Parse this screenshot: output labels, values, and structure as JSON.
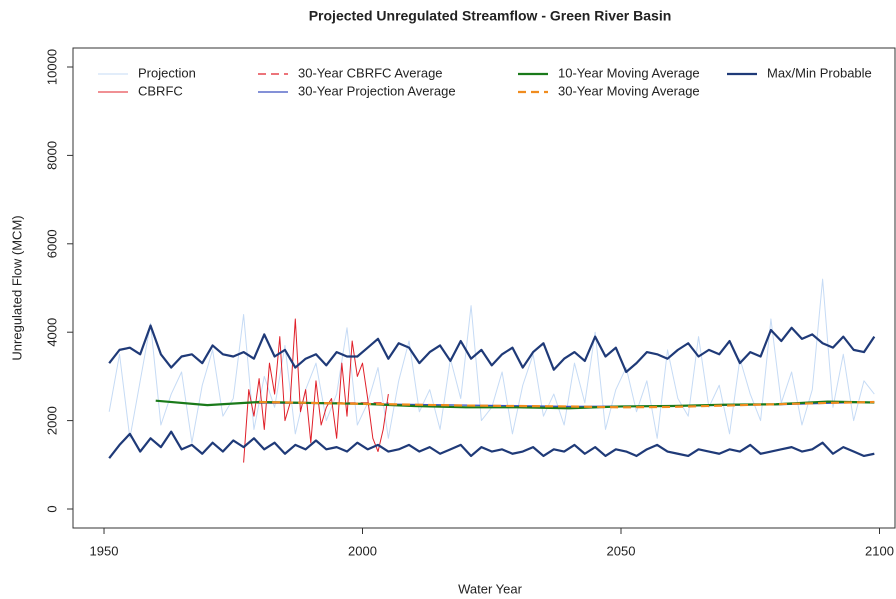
{
  "chart_data": {
    "type": "line",
    "title": "Projected Unregulated Streamflow - Green River Basin",
    "x_label": "Water Year",
    "y_label": "Unregulated Flow (MCM)",
    "xlim": [
      1944,
      2103
    ],
    "ylim": [
      -430,
      10430
    ],
    "xticks": [
      1950,
      2000,
      2050,
      2100
    ],
    "yticks": [
      0,
      2000,
      4000,
      6000,
      8000,
      10000
    ],
    "legend": "top",
    "series": [
      {
        "name": "Projection",
        "color": "#c6dbf5",
        "width": 1,
        "x": [
          1951,
          1953,
          1955,
          1957,
          1959,
          1961,
          1963,
          1965,
          1967,
          1969,
          1971,
          1973,
          1975,
          1977,
          1979,
          1981,
          1983,
          1985,
          1987,
          1989,
          1991,
          1993,
          1995,
          1997,
          1999,
          2001,
          2003,
          2005,
          2007,
          2009,
          2011,
          2013,
          2015,
          2017,
          2019,
          2021,
          2023,
          2025,
          2027,
          2029,
          2031,
          2033,
          2035,
          2037,
          2039,
          2041,
          2043,
          2045,
          2047,
          2049,
          2051,
          2053,
          2055,
          2057,
          2059,
          2061,
          2063,
          2065,
          2067,
          2069,
          2071,
          2073,
          2075,
          2077,
          2079,
          2081,
          2083,
          2085,
          2087,
          2089,
          2091,
          2093,
          2095,
          2097,
          2099
        ],
        "values": [
          2200,
          3500,
          1600,
          2900,
          4200,
          1900,
          2600,
          3100,
          1500,
          2800,
          3600,
          2100,
          2500,
          4400,
          1800,
          3000,
          2300,
          3700,
          1700,
          2700,
          3300,
          2000,
          2600,
          4100,
          1900,
          2400,
          3200,
          1600,
          2900,
          3800,
          2200,
          2700,
          1800,
          3400,
          2500,
          4600,
          2000,
          2300,
          3100,
          1700,
          2800,
          3500,
          2100,
          2600,
          1900,
          3300,
          2400,
          4000,
          1800,
          2700,
          3200,
          2200,
          2900,
          1600,
          3600,
          2500,
          2100,
          3900,
          2300,
          2800,
          1700,
          3400,
          2600,
          2000,
          4300,
          2400,
          3100,
          1900,
          2700,
          5200,
          2300,
          3500,
          2000,
          2900,
          2600
        ]
      },
      {
        "name": "CBRFC",
        "color": "#e0202a",
        "width": 1,
        "x": [
          1977,
          1978,
          1979,
          1980,
          1981,
          1982,
          1983,
          1984,
          1985,
          1986,
          1987,
          1988,
          1989,
          1990,
          1991,
          1992,
          1993,
          1994,
          1995,
          1996,
          1997,
          1998,
          1999,
          2000,
          2001,
          2002,
          2003,
          2004,
          2005
        ],
        "values": [
          1050,
          2700,
          2100,
          2950,
          1800,
          3300,
          2600,
          3900,
          2000,
          2400,
          4300,
          2200,
          2700,
          1500,
          2900,
          1900,
          2300,
          2500,
          1600,
          3300,
          2100,
          3800,
          3000,
          3300,
          2500,
          1600,
          1300,
          1800,
          2600
        ]
      },
      {
        "name": "30-Year CBRFC Average",
        "color": "#e0202a",
        "width": 1.3,
        "dash": true,
        "x": [
          1977,
          2005
        ],
        "values": [
          2400,
          2400
        ]
      },
      {
        "name": "30-Year Projection Average",
        "color": "#3a4fbf",
        "width": 1.3,
        "x": [
          1980,
          2000,
          2020,
          2040,
          2060,
          2080,
          2099
        ],
        "values": [
          2400,
          2380,
          2350,
          2320,
          2330,
          2360,
          2420
        ]
      },
      {
        "name": "10-Year Moving Average",
        "color": "#1a7a1a",
        "width": 2.2,
        "x": [
          1960,
          1970,
          1980,
          1990,
          2000,
          2010,
          2020,
          2030,
          2040,
          2050,
          2060,
          2070,
          2080,
          2090,
          2099
        ],
        "values": [
          2450,
          2350,
          2420,
          2400,
          2380,
          2330,
          2300,
          2300,
          2280,
          2320,
          2330,
          2360,
          2370,
          2430,
          2410
        ]
      },
      {
        "name": "30-Year Moving Average",
        "color": "#f08c1e",
        "width": 2.2,
        "dash": true,
        "x": [
          1980,
          1990,
          2000,
          2010,
          2020,
          2030,
          2040,
          2050,
          2060,
          2070,
          2080,
          2090,
          2099
        ],
        "values": [
          2420,
          2400,
          2380,
          2360,
          2340,
          2330,
          2320,
          2300,
          2310,
          2340,
          2370,
          2400,
          2420
        ]
      },
      {
        "name": "Max/Min Probable",
        "color": "#1f3a78",
        "width": 2.2,
        "x": [
          1951,
          1953,
          1955,
          1957,
          1959,
          1961,
          1963,
          1965,
          1967,
          1969,
          1971,
          1973,
          1975,
          1977,
          1979,
          1981,
          1983,
          1985,
          1987,
          1989,
          1991,
          1993,
          1995,
          1997,
          1999,
          2001,
          2003,
          2005,
          2007,
          2009,
          2011,
          2013,
          2015,
          2017,
          2019,
          2021,
          2023,
          2025,
          2027,
          2029,
          2031,
          2033,
          2035,
          2037,
          2039,
          2041,
          2043,
          2045,
          2047,
          2049,
          2051,
          2053,
          2055,
          2057,
          2059,
          2061,
          2063,
          2065,
          2067,
          2069,
          2071,
          2073,
          2075,
          2077,
          2079,
          2081,
          2083,
          2085,
          2087,
          2089,
          2091,
          2093,
          2095,
          2097,
          2099
        ],
        "values": [
          3300,
          3600,
          3650,
          3500,
          4150,
          3500,
          3200,
          3450,
          3500,
          3300,
          3700,
          3500,
          3450,
          3550,
          3400,
          3950,
          3450,
          3600,
          3200,
          3400,
          3500,
          3250,
          3550,
          3450,
          3450,
          3650,
          3850,
          3400,
          3750,
          3650,
          3300,
          3550,
          3700,
          3350,
          3800,
          3400,
          3600,
          3250,
          3500,
          3650,
          3200,
          3550,
          3750,
          3150,
          3400,
          3550,
          3350,
          3900,
          3450,
          3650,
          3100,
          3300,
          3550,
          3500,
          3400,
          3600,
          3750,
          3450,
          3600,
          3500,
          3800,
          3300,
          3550,
          3450,
          4050,
          3800,
          4100,
          3850,
          3950,
          3750,
          3650,
          3900,
          3600,
          3550,
          3900
        ],
        "min_values": [
          1150,
          1450,
          1700,
          1300,
          1600,
          1400,
          1750,
          1350,
          1450,
          1250,
          1500,
          1300,
          1550,
          1400,
          1600,
          1350,
          1500,
          1250,
          1450,
          1350,
          1550,
          1350,
          1400,
          1300,
          1500,
          1350,
          1450,
          1300,
          1350,
          1450,
          1300,
          1400,
          1250,
          1350,
          1450,
          1200,
          1400,
          1300,
          1350,
          1250,
          1300,
          1400,
          1200,
          1350,
          1300,
          1450,
          1250,
          1400,
          1200,
          1350,
          1300,
          1200,
          1350,
          1450,
          1300,
          1250,
          1200,
          1350,
          1300,
          1250,
          1350,
          1300,
          1450,
          1250,
          1300,
          1350,
          1400,
          1300,
          1350,
          1500,
          1250,
          1400,
          1300,
          1200,
          1250
        ]
      }
    ]
  }
}
